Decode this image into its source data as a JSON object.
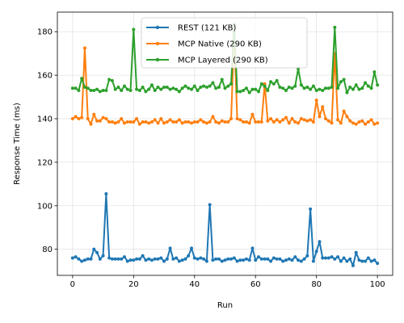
{
  "chart_data": {
    "type": "line",
    "title": "",
    "xlabel": "Run",
    "ylabel": "Response Time (ms)",
    "xlim": [
      -5,
      105
    ],
    "ylim": [
      68,
      189
    ],
    "x_ticks": [
      0,
      20,
      40,
      60,
      80,
      100
    ],
    "y_ticks": [
      80,
      100,
      120,
      140,
      160,
      180
    ],
    "grid": true,
    "legend_position": "top-center",
    "series": [
      {
        "name": "REST (121 KB)",
        "color": "#1f77b4",
        "values": [
          76,
          76.5,
          75.5,
          74.5,
          75,
          75.5,
          75.5,
          80,
          78.5,
          75.5,
          77,
          105.5,
          76,
          75.5,
          75.5,
          75.5,
          75.5,
          76.5,
          74.5,
          75,
          75,
          75.5,
          75.5,
          77,
          75,
          75.5,
          75,
          75.5,
          75.5,
          76,
          74.5,
          75.5,
          80.5,
          75.5,
          76,
          74.5,
          75,
          75.5,
          77,
          80.5,
          76,
          75.5,
          76,
          75.5,
          74.5,
          100.5,
          75,
          75.5,
          75.5,
          74.5,
          75,
          75.5,
          75.5,
          76,
          74.5,
          75,
          75,
          75.5,
          75,
          80.5,
          75,
          76.5,
          75.5,
          75.5,
          75.5,
          74.5,
          76,
          75.5,
          75.5,
          74.5,
          75,
          75.5,
          75,
          76.5,
          75,
          74.5,
          75.5,
          77,
          98.5,
          74.5,
          79,
          83.5,
          76,
          76,
          76,
          76.5,
          75.5,
          76.5,
          74.5,
          76,
          74.5,
          75.5,
          72.5,
          78.5,
          75,
          74.5,
          74.5,
          76,
          74.5,
          75,
          73.5
        ]
      },
      {
        "name": "MCP Native (290 KB)",
        "color": "#ff7f0e",
        "values": [
          140,
          141,
          140,
          140.5,
          172.5,
          140,
          137.5,
          142,
          139,
          139,
          140.5,
          140,
          138.5,
          138.5,
          138,
          138.5,
          140,
          138,
          138.5,
          138.5,
          138.5,
          140,
          137.5,
          138.5,
          138.5,
          138,
          138.5,
          139.5,
          138,
          140,
          138,
          138.5,
          139.5,
          138.5,
          138.5,
          139.5,
          138,
          138.5,
          138.5,
          138,
          138.5,
          138.5,
          139.5,
          138.5,
          138,
          138.5,
          141,
          138.5,
          138,
          139,
          138.5,
          138.5,
          140,
          179,
          140,
          139.5,
          138.5,
          138.5,
          138,
          142,
          138.5,
          138.5,
          138.5,
          156,
          139,
          140,
          138.5,
          139.5,
          138.5,
          139.5,
          140.5,
          138,
          140,
          138.5,
          138,
          140,
          139.5,
          139,
          139.5,
          138.5,
          148.5,
          141,
          145.5,
          140,
          139,
          138,
          170,
          139.5,
          138,
          143.5,
          141,
          139,
          138,
          137.5,
          138.5,
          139,
          137.5,
          138.5,
          139.5,
          137.5,
          138
        ]
      },
      {
        "name": "MCP Layered (290 KB)",
        "color": "#2ca02c",
        "values": [
          154,
          154,
          153,
          158.5,
          154.5,
          154,
          153,
          153,
          153.5,
          152.5,
          153,
          153,
          158,
          157.5,
          153.5,
          154.5,
          153,
          155,
          153.5,
          153,
          181,
          153.5,
          153,
          154.5,
          152.5,
          153.5,
          155.5,
          153,
          154.5,
          153.5,
          154.5,
          154.5,
          153.5,
          154,
          153.5,
          152.5,
          154,
          155,
          154,
          153.5,
          155,
          153,
          154.5,
          155,
          154.5,
          155,
          156.5,
          154,
          154.5,
          158,
          154,
          155,
          156,
          183.5,
          152.5,
          152.5,
          153,
          154,
          152,
          153.5,
          153.5,
          152.5,
          156,
          155,
          153,
          157,
          156,
          157.5,
          154.5,
          154,
          153,
          154.5,
          154,
          155,
          163,
          155.5,
          154,
          154.5,
          153.5,
          155,
          153,
          153.5,
          153,
          154,
          154,
          154.5,
          182,
          154,
          157,
          158,
          152,
          154.5,
          153.5,
          155.5,
          153.5,
          154,
          156.5,
          155,
          154,
          161.5,
          155.5
        ]
      }
    ]
  }
}
